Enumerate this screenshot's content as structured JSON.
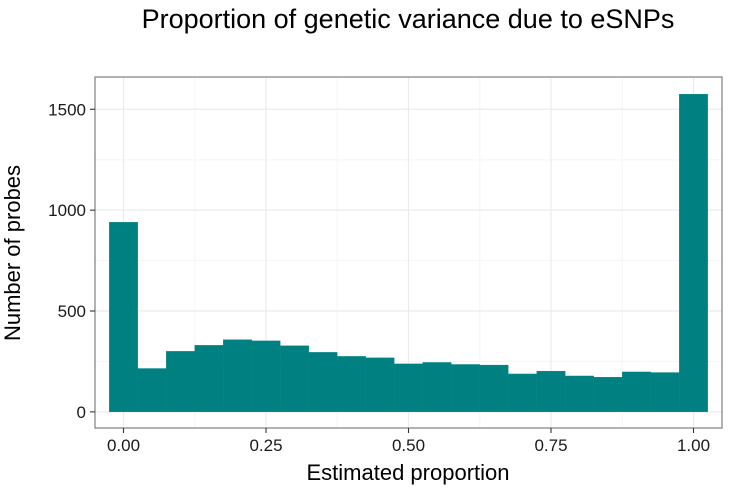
{
  "chart_data": {
    "type": "bar",
    "title": "Proportion of genetic variance due to eSNPs",
    "xlabel": "Estimated proportion",
    "ylabel": "Number of probes",
    "bin_width": 0.05,
    "x": [
      0.0,
      0.05,
      0.1,
      0.15,
      0.2,
      0.25,
      0.3,
      0.35,
      0.4,
      0.45,
      0.5,
      0.55,
      0.6,
      0.65,
      0.7,
      0.75,
      0.8,
      0.85,
      0.9,
      0.95,
      1.0
    ],
    "values": [
      940,
      215,
      300,
      330,
      358,
      352,
      328,
      295,
      275,
      268,
      238,
      245,
      235,
      232,
      188,
      202,
      178,
      172,
      198,
      195,
      1575
    ],
    "xlim": [
      -0.05,
      1.05
    ],
    "ylim": [
      -80,
      1660
    ],
    "x_ticks": [
      "0.00",
      "0.25",
      "0.50",
      "0.75",
      "1.00"
    ],
    "x_tick_values": [
      0,
      0.25,
      0.5,
      0.75,
      1.0
    ],
    "y_ticks": [
      "0",
      "500",
      "1000",
      "1500"
    ],
    "y_tick_values": [
      0,
      500,
      1000,
      1500
    ],
    "grid": true,
    "colors": {
      "bar": "#008080",
      "grid_major": "#ebebeb",
      "grid_minor": "#f5f5f5",
      "panel_border": "#7f7f7f"
    }
  }
}
